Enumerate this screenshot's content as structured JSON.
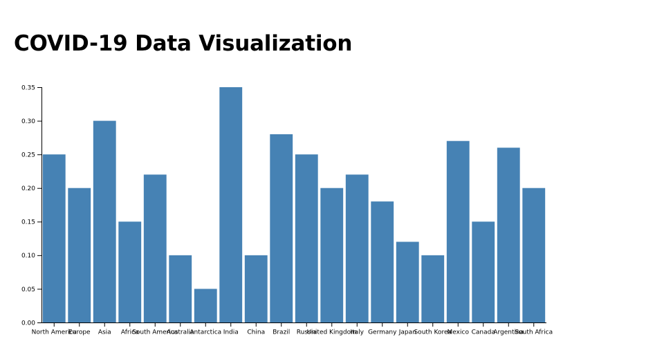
{
  "page": {
    "title": "COVID-19 Data Visualization"
  },
  "colors": {
    "bar": "#4682b4",
    "axis": "#000000"
  },
  "chart_data": {
    "type": "bar",
    "categories": [
      "North America",
      "Europe",
      "Asia",
      "Africa",
      "South America",
      "Australia",
      "Antarctica",
      "India",
      "China",
      "Brazil",
      "Russia",
      "United Kingdom",
      "Italy",
      "Germany",
      "Japan",
      "South Korea",
      "Mexico",
      "Canada",
      "Argentina",
      "South Africa"
    ],
    "values": [
      0.25,
      0.2,
      0.3,
      0.15,
      0.22,
      0.1,
      0.05,
      0.35,
      0.1,
      0.28,
      0.25,
      0.2,
      0.22,
      0.18,
      0.12,
      0.1,
      0.27,
      0.15,
      0.26,
      0.2
    ],
    "yticks": [
      "0.00",
      "0.05",
      "0.10",
      "0.15",
      "0.20",
      "0.25",
      "0.30",
      "0.35"
    ],
    "ylim": [
      0,
      0.35
    ],
    "title": "COVID-19 Data Visualization",
    "xlabel": "",
    "ylabel": "",
    "grid": false,
    "legend": "none"
  }
}
